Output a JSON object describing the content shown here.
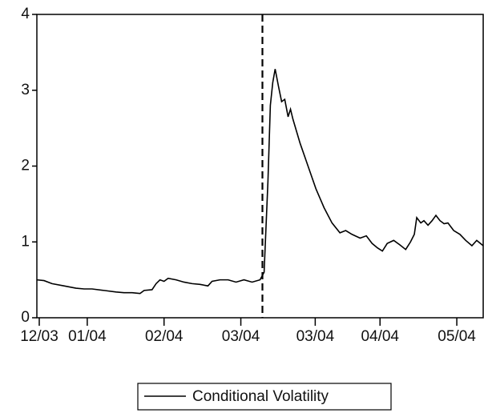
{
  "chart_data": {
    "type": "line",
    "x": [
      0,
      3,
      6.3,
      11.3,
      16.3,
      19.7,
      23,
      28,
      33,
      36.3,
      39.7,
      43,
      44.7,
      48,
      49.7,
      51.3,
      53,
      54.7,
      58,
      61.3,
      64.7,
      68,
      71.3,
      73,
      76.3,
      79.7,
      83,
      86.3,
      89.7,
      93,
      94.7,
      96.3,
      97.3,
      98.3,
      99.3,
      100.7,
      102,
      103.3,
      104.7,
      105.7,
      106.7,
      109.7,
      113,
      116.3,
      119.7,
      123,
      126.3,
      128.7,
      131.3,
      134.7,
      137.3,
      139.7,
      142,
      144,
      146,
      148.7,
      151.3,
      153.7,
      155.7,
      157.3,
      158.3,
      160,
      161.3,
      163,
      164.7,
      166.3,
      168,
      169.7,
      171.3,
      173.7,
      176.3,
      178.7,
      181.3,
      183.3,
      186
    ],
    "series": [
      {
        "name": "Conditional Volatility",
        "color": "#000000",
        "values": [
          0.5,
          0.49,
          0.45,
          0.42,
          0.39,
          0.38,
          0.38,
          0.36,
          0.34,
          0.33,
          0.33,
          0.32,
          0.36,
          0.37,
          0.45,
          0.5,
          0.48,
          0.52,
          0.5,
          0.47,
          0.45,
          0.44,
          0.42,
          0.48,
          0.5,
          0.5,
          0.47,
          0.5,
          0.47,
          0.5,
          0.6,
          1.8,
          2.8,
          3.1,
          3.28,
          3.05,
          2.85,
          2.88,
          2.65,
          2.75,
          2.62,
          2.3,
          2.0,
          1.7,
          1.45,
          1.25,
          1.12,
          1.15,
          1.1,
          1.05,
          1.08,
          0.98,
          0.92,
          0.88,
          0.98,
          1.02,
          0.96,
          0.9,
          1.0,
          1.1,
          1.32,
          1.25,
          1.28,
          1.22,
          1.28,
          1.35,
          1.28,
          1.24,
          1.25,
          1.15,
          1.1,
          1.02,
          0.95,
          1.02,
          0.95
        ]
      }
    ],
    "xlim": [
      0,
      186
    ],
    "xticks": [
      {
        "value": 1,
        "label": "12/03"
      },
      {
        "value": 21,
        "label": "01/04"
      },
      {
        "value": 53,
        "label": "02/04"
      },
      {
        "value": 85,
        "label": "03/04"
      },
      {
        "value": 116,
        "label": "03/04"
      },
      {
        "value": 143,
        "label": "04/04"
      },
      {
        "value": 175,
        "label": "05/04"
      }
    ],
    "ylim": [
      0,
      4
    ],
    "yticks": [
      0,
      1,
      2,
      3,
      4
    ],
    "vline_x": 94
  }
}
